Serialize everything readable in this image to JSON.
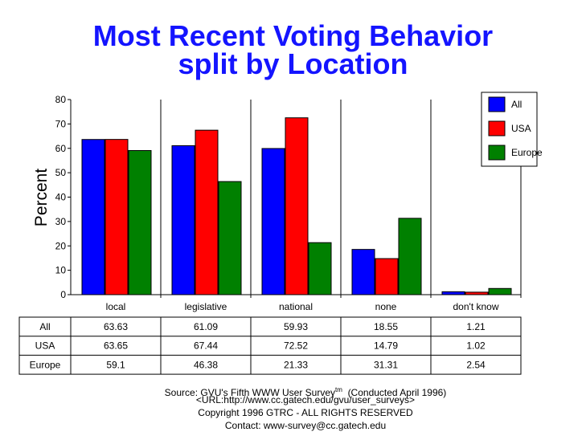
{
  "chart_data": {
    "type": "bar",
    "title": [
      "Most Recent Voting Behavior",
      "split by Location"
    ],
    "ylabel": "Percent",
    "xlabel": "",
    "ylim": [
      0,
      80
    ],
    "yticks": [
      0,
      10,
      20,
      30,
      40,
      50,
      60,
      70,
      80
    ],
    "categories": [
      "local",
      "legislative",
      "national",
      "none",
      "don't know"
    ],
    "series": [
      {
        "name": "All",
        "color": "#0000ff",
        "values": [
          63.63,
          61.09,
          59.93,
          18.55,
          1.21
        ],
        "labels": [
          "63.63",
          "61.09",
          "59.93",
          "18.55",
          "1.21"
        ]
      },
      {
        "name": "USA",
        "color": "#ff0000",
        "values": [
          63.65,
          67.44,
          72.52,
          14.79,
          1.02
        ],
        "labels": [
          "63.65",
          "67.44",
          "72.52",
          "14.79",
          "1.02"
        ]
      },
      {
        "name": "Europe",
        "color": "#008000",
        "values": [
          59.1,
          46.38,
          21.33,
          31.31,
          2.54
        ],
        "labels": [
          "59.1",
          "46.38",
          "21.33",
          "31.31",
          "2.54"
        ]
      }
    ],
    "legend": "top-right",
    "grid": false
  },
  "footer": {
    "source": "Source: GVU's Fifth WWW User Survey",
    "tm": "tm",
    "conducted": "(Conducted April 1996)",
    "url": "<URL:http://www.cc.gatech.edu/gvu/user_surveys>",
    "copyright": "Copyright 1996 GTRC -  ALL RIGHTS RESERVED",
    "contact": "Contact: www-survey@cc.gatech.edu"
  }
}
